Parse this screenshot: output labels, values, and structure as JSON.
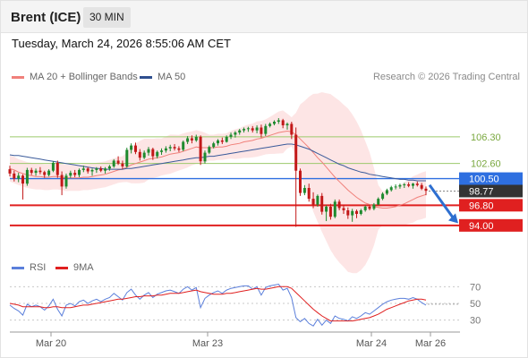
{
  "header": {
    "title": "Brent (ICE)",
    "interval": "30 MIN"
  },
  "timestamp": "Tuesday, March 24, 2026 8:55:06 AM CET",
  "legend": {
    "items": [
      {
        "label": "MA 20 + Bollinger Bands",
        "color": "#f0807a"
      },
      {
        "label": "MA 50",
        "color": "#2f4f8f"
      }
    ],
    "credit": "Research © 2026 Trading Central"
  },
  "rsi_legend": {
    "items": [
      {
        "label": "RSI",
        "color": "#5b7fdb"
      },
      {
        "label": "9MA",
        "color": "#e02020"
      }
    ]
  },
  "colors": {
    "up": "#1e8a2e",
    "down": "#c21818",
    "ma20": "#f0807a",
    "ma50": "#3a5a9a",
    "bollinger": "#fde0e0",
    "resistance": "#9cc96b",
    "support": "#e02020",
    "pivot": "#2e6fe0",
    "arrow": "#2e6fd0",
    "current": "#333333"
  },
  "chart_data": [
    {
      "type": "candlestick",
      "ylim": [
        90.5,
        113.5
      ],
      "x_ticks": [
        "Mar 20",
        "Mar 23",
        "Mar 24",
        "Mar 26"
      ],
      "series": [
        {
          "name": "Brent (ICE)",
          "ohlc": [
            [
              101.8,
              102.3,
              100.8,
              101.2
            ],
            [
              101.2,
              101.6,
              100.1,
              100.5
            ],
            [
              100.5,
              101.3,
              100.0,
              100.9
            ],
            [
              100.9,
              101.1,
              97.6,
              99.8
            ],
            [
              99.8,
              102.0,
              99.5,
              101.7
            ],
            [
              101.7,
              102.0,
              101.0,
              101.3
            ],
            [
              101.3,
              101.9,
              100.9,
              101.6
            ],
            [
              101.6,
              102.1,
              101.1,
              101.4
            ],
            [
              101.4,
              101.6,
              100.6,
              101.0
            ],
            [
              101.0,
              101.8,
              100.8,
              101.6
            ],
            [
              101.6,
              102.9,
              101.4,
              102.7
            ],
            [
              102.7,
              103.0,
              100.6,
              101.0
            ],
            [
              101.0,
              101.5,
              98.2,
              99.4
            ],
            [
              99.4,
              101.2,
              99.1,
              100.9
            ],
            [
              100.9,
              101.6,
              100.6,
              101.3
            ],
            [
              101.3,
              101.7,
              100.7,
              101.0
            ],
            [
              101.0,
              101.9,
              100.7,
              101.7
            ],
            [
              101.7,
              102.3,
              101.4,
              101.9
            ],
            [
              101.9,
              102.1,
              101.2,
              101.5
            ],
            [
              101.5,
              101.9,
              100.9,
              101.7
            ],
            [
              101.7,
              102.1,
              101.3,
              101.9
            ],
            [
              101.9,
              102.2,
              101.4,
              101.6
            ],
            [
              101.6,
              102.1,
              101.2,
              101.9
            ],
            [
              101.9,
              102.4,
              101.6,
              102.2
            ],
            [
              102.2,
              103.2,
              102.0,
              103.0
            ],
            [
              103.0,
              103.6,
              102.4,
              102.6
            ],
            [
              102.6,
              103.0,
              101.8,
              102.2
            ],
            [
              102.2,
              104.8,
              102.0,
              104.5
            ],
            [
              104.5,
              105.4,
              104.0,
              105.1
            ],
            [
              105.1,
              105.5,
              103.9,
              104.2
            ],
            [
              104.2,
              104.6,
              103.0,
              103.4
            ],
            [
              103.4,
              104.4,
              103.2,
              104.1
            ],
            [
              104.1,
              104.9,
              103.7,
              104.6
            ],
            [
              104.6,
              104.8,
              103.1,
              103.6
            ],
            [
              103.6,
              104.4,
              103.3,
              104.2
            ],
            [
              104.2,
              104.7,
              103.8,
              104.4
            ],
            [
              104.4,
              105.0,
              104.1,
              104.7
            ],
            [
              104.7,
              105.2,
              104.3,
              104.9
            ],
            [
              104.9,
              105.3,
              104.4,
              104.7
            ],
            [
              104.7,
              105.0,
              104.2,
              104.5
            ],
            [
              104.5,
              105.8,
              104.3,
              105.6
            ],
            [
              105.6,
              106.4,
              105.3,
              106.1
            ],
            [
              106.1,
              106.5,
              105.4,
              105.8
            ],
            [
              105.8,
              106.6,
              105.6,
              106.3
            ],
            [
              106.3,
              106.5,
              102.4,
              102.9
            ],
            [
              102.9,
              104.4,
              102.6,
              104.1
            ],
            [
              104.1,
              105.1,
              103.9,
              104.9
            ],
            [
              104.9,
              105.6,
              104.7,
              105.4
            ],
            [
              105.4,
              106.0,
              105.1,
              105.8
            ],
            [
              105.8,
              106.2,
              105.3,
              105.6
            ],
            [
              105.6,
              106.5,
              105.5,
              106.3
            ],
            [
              106.3,
              106.9,
              106.0,
              106.6
            ],
            [
              106.6,
              107.1,
              106.2,
              106.9
            ],
            [
              106.9,
              107.4,
              106.6,
              107.2
            ],
            [
              107.2,
              107.6,
              106.9,
              107.4
            ],
            [
              107.4,
              107.7,
              107.0,
              107.5
            ],
            [
              107.5,
              107.8,
              106.9,
              107.2
            ],
            [
              107.2,
              107.9,
              106.8,
              107.6
            ],
            [
              107.6,
              108.0,
              106.2,
              106.7
            ],
            [
              106.7,
              108.1,
              106.4,
              107.8
            ],
            [
              107.8,
              108.3,
              107.6,
              108.1
            ],
            [
              108.1,
              108.6,
              107.9,
              108.4
            ],
            [
              108.4,
              108.9,
              108.1,
              108.6
            ],
            [
              108.6,
              108.8,
              107.5,
              107.9
            ],
            [
              107.9,
              108.3,
              107.3,
              108.1
            ],
            [
              108.1,
              108.4,
              106.0,
              106.6
            ],
            [
              106.6,
              107.6,
              93.8,
              101.6
            ],
            [
              101.6,
              101.9,
              98.1,
              98.5
            ],
            [
              98.5,
              99.6,
              98.2,
              99.2
            ],
            [
              99.2,
              99.8,
              97.3,
              97.7
            ],
            [
              97.7,
              98.6,
              96.4,
              96.9
            ],
            [
              96.9,
              98.3,
              96.6,
              98.1
            ],
            [
              98.1,
              98.5,
              95.5,
              95.9
            ],
            [
              95.9,
              96.8,
              94.6,
              96.6
            ],
            [
              96.6,
              97.0,
              94.8,
              95.2
            ],
            [
              95.2,
              97.6,
              95.0,
              97.3
            ],
            [
              97.3,
              97.6,
              96.1,
              96.4
            ],
            [
              96.4,
              96.8,
              95.6,
              96.1
            ],
            [
              96.1,
              96.5,
              94.9,
              95.4
            ],
            [
              95.4,
              96.3,
              94.5,
              96.0
            ],
            [
              96.0,
              96.2,
              95.0,
              95.6
            ],
            [
              95.6,
              96.3,
              95.4,
              96.1
            ],
            [
              96.1,
              96.8,
              95.9,
              96.6
            ],
            [
              96.6,
              96.9,
              96.1,
              96.3
            ],
            [
              96.3,
              97.1,
              96.1,
              96.9
            ],
            [
              96.9,
              97.9,
              96.8,
              97.7
            ],
            [
              97.7,
              98.6,
              97.5,
              98.4
            ],
            [
              98.4,
              99.1,
              98.2,
              98.9
            ],
            [
              98.9,
              99.5,
              98.7,
              99.3
            ],
            [
              99.3,
              99.7,
              99.0,
              99.4
            ],
            [
              99.4,
              99.8,
              99.1,
              99.6
            ],
            [
              99.6,
              99.9,
              99.2,
              99.7
            ],
            [
              99.7,
              100.0,
              99.3,
              99.5
            ],
            [
              99.5,
              99.9,
              99.1,
              99.8
            ],
            [
              99.8,
              100.1,
              99.4,
              99.6
            ],
            [
              99.6,
              99.9,
              98.9,
              99.1
            ],
            [
              99.1,
              99.4,
              98.2,
              98.8
            ]
          ]
        },
        {
          "name": "MA 20",
          "values": [
            101.9,
            101.7,
            101.4,
            101.2,
            101.0,
            100.9,
            100.8,
            100.8,
            100.7,
            100.7,
            100.8,
            100.8,
            100.7,
            100.6,
            100.6,
            100.6,
            100.6,
            100.7,
            100.7,
            100.8,
            100.9,
            101.0,
            101.1,
            101.3,
            101.5,
            101.7,
            101.8,
            102.1,
            102.4,
            102.6,
            102.8,
            103.0,
            103.2,
            103.3,
            103.4,
            103.5,
            103.7,
            103.9,
            104.0,
            104.1,
            104.3,
            104.5,
            104.7,
            104.9,
            104.8,
            104.8,
            104.8,
            104.8,
            104.9,
            104.9,
            105.0,
            105.2,
            105.3,
            105.4,
            105.6,
            105.7,
            105.8,
            106.0,
            106.1,
            106.3,
            106.5,
            106.7,
            106.9,
            107.0,
            107.1,
            107.0,
            106.6,
            106.0,
            105.4,
            104.8,
            104.1,
            103.4,
            102.8,
            102.1,
            101.4,
            100.7,
            100.1,
            99.5,
            98.9,
            98.4,
            97.9,
            97.5,
            97.1,
            96.9,
            96.6,
            96.5,
            96.4,
            96.4,
            96.5,
            96.6,
            96.8,
            97.0,
            97.3,
            97.6,
            97.9,
            98.1,
            98.3
          ]
        },
        {
          "name": "MA 50",
          "values": [
            103.8,
            103.7,
            103.7,
            103.6,
            103.5,
            103.4,
            103.3,
            103.2,
            103.1,
            103.0,
            102.9,
            102.8,
            102.7,
            102.6,
            102.5,
            102.4,
            102.3,
            102.2,
            102.1,
            102.0,
            101.9,
            101.9,
            101.8,
            101.8,
            101.8,
            101.8,
            101.8,
            101.9,
            101.9,
            102.0,
            102.1,
            102.2,
            102.3,
            102.4,
            102.5,
            102.6,
            102.7,
            102.8,
            102.9,
            103.0,
            103.1,
            103.2,
            103.3,
            103.4,
            103.4,
            103.5,
            103.6,
            103.6,
            103.7,
            103.8,
            103.9,
            104.0,
            104.1,
            104.2,
            104.3,
            104.4,
            104.5,
            104.6,
            104.7,
            104.8,
            104.9,
            105.0,
            105.1,
            105.2,
            105.3,
            105.3,
            105.2,
            105.0,
            104.8,
            104.6,
            104.3,
            104.0,
            103.7,
            103.4,
            103.1,
            102.8,
            102.5,
            102.3,
            102.0,
            101.8,
            101.6,
            101.4,
            101.3,
            101.1,
            101.0,
            100.9,
            100.8,
            100.7,
            100.6,
            100.5,
            100.4,
            100.4,
            100.3,
            100.3,
            100.2,
            100.2,
            100.2
          ]
        }
      ],
      "levels": {
        "resistance": [
          {
            "value": 106.3,
            "label": "106.30"
          },
          {
            "value": 102.6,
            "label": "102.60"
          }
        ],
        "pivot": {
          "value": 100.5,
          "label": "100.50"
        },
        "current": {
          "value": 98.77,
          "label": "98.77"
        },
        "support": [
          {
            "value": 96.8,
            "label": "96.80"
          },
          {
            "value": 94.0,
            "label": "94.00"
          }
        ]
      }
    },
    {
      "type": "line",
      "ylim": [
        20,
        80
      ],
      "y_ticks": [
        30,
        50,
        70
      ],
      "series": [
        {
          "name": "RSI",
          "values": [
            48,
            44,
            41,
            36,
            49,
            46,
            48,
            46,
            42,
            47,
            55,
            43,
            35,
            48,
            50,
            47,
            52,
            54,
            50,
            53,
            55,
            52,
            55,
            57,
            62,
            58,
            54,
            63,
            67,
            60,
            55,
            60,
            63,
            57,
            61,
            63,
            65,
            66,
            64,
            62,
            67,
            70,
            66,
            69,
            45,
            56,
            60,
            63,
            65,
            62,
            66,
            68,
            69,
            70,
            71,
            71,
            67,
            70,
            60,
            69,
            71,
            72,
            73,
            66,
            68,
            57,
            33,
            28,
            32,
            26,
            23,
            31,
            24,
            30,
            26,
            35,
            32,
            31,
            29,
            34,
            32,
            35,
            39,
            37,
            41,
            45,
            49,
            52,
            54,
            55,
            56,
            56,
            55,
            57,
            55,
            51,
            48
          ]
        },
        {
          "name": "9MA",
          "values": [
            50,
            49,
            48,
            46,
            46,
            46,
            46,
            46,
            45,
            45,
            46,
            46,
            45,
            45,
            45,
            46,
            47,
            48,
            48,
            49,
            50,
            51,
            52,
            53,
            54,
            55,
            55,
            56,
            57,
            58,
            58,
            59,
            59,
            59,
            60,
            60,
            61,
            62,
            62,
            62,
            63,
            64,
            65,
            66,
            64,
            63,
            62,
            61,
            61,
            61,
            62,
            62,
            63,
            64,
            65,
            66,
            67,
            68,
            67,
            67,
            68,
            69,
            70,
            70,
            70,
            68,
            63,
            58,
            53,
            48,
            43,
            39,
            35,
            32,
            29,
            29,
            29,
            29,
            29,
            29,
            30,
            31,
            32,
            33,
            35,
            37,
            40,
            43,
            45,
            47,
            49,
            51,
            53,
            54,
            55,
            55,
            54
          ]
        }
      ]
    }
  ]
}
